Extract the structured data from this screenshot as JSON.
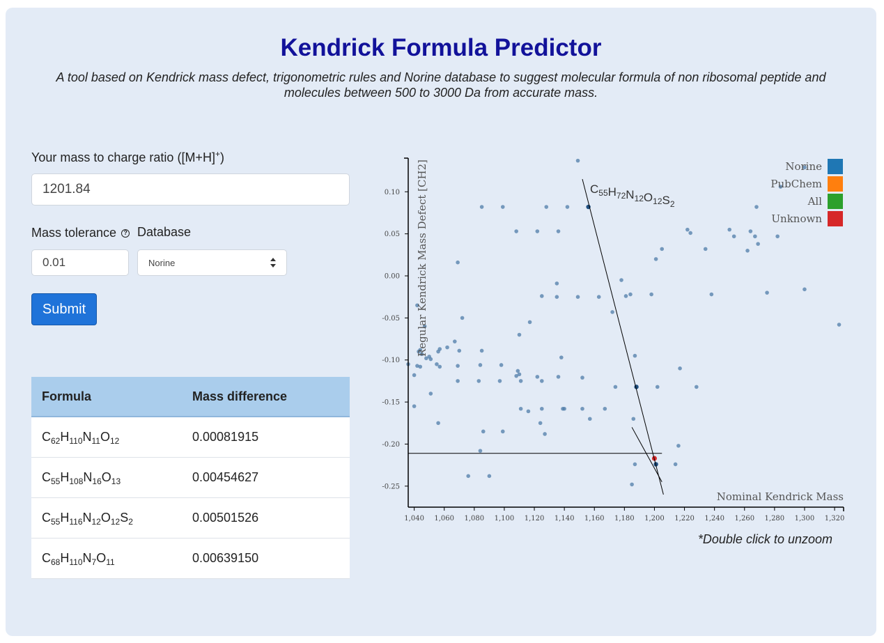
{
  "header": {
    "title": "Kendrick Formula Predictor",
    "subtitle": "A tool based on Kendrick mass defect, trigonometric rules and Norine database to suggest molecular formula of non ribosomal peptide and molecules between 500 to 3000 Da from accurate mass."
  },
  "form": {
    "mz_label": "Your mass to charge ratio ([M+H]",
    "mz_label_sup": "+",
    "mz_label_end": ")",
    "mz_value": "1201.84",
    "tolerance_label": "Mass tolerance",
    "tolerance_help": "?",
    "tolerance_value": "0.01",
    "database_label": "Database",
    "database_selected": "Norine",
    "submit_label": "Submit"
  },
  "results": {
    "headers": [
      "Formula",
      "Mass difference"
    ],
    "rows": [
      {
        "formula": [
          [
            "C",
            "62"
          ],
          [
            "H",
            "110"
          ],
          [
            "N",
            "11"
          ],
          [
            "O",
            "12"
          ]
        ],
        "diff": "0.00081915"
      },
      {
        "formula": [
          [
            "C",
            "55"
          ],
          [
            "H",
            "108"
          ],
          [
            "N",
            "16"
          ],
          [
            "O",
            "13"
          ]
        ],
        "diff": "0.00454627"
      },
      {
        "formula": [
          [
            "C",
            "55"
          ],
          [
            "H",
            "116"
          ],
          [
            "N",
            "12"
          ],
          [
            "O",
            "12"
          ],
          [
            "S",
            "2"
          ]
        ],
        "diff": "0.00501526"
      },
      {
        "formula": [
          [
            "C",
            "68"
          ],
          [
            "H",
            "110"
          ],
          [
            "N",
            "7"
          ],
          [
            "O",
            "11"
          ]
        ],
        "diff": "0.00639150"
      }
    ]
  },
  "chart_data": {
    "type": "scatter",
    "xlabel": "Nominal Kendrick Mass",
    "ylabel": "Regular Kendrick Mass Defect [CH2]",
    "xlim": [
      1036,
      1326
    ],
    "ylim": [
      -0.275,
      0.14
    ],
    "x_ticks": [
      1040,
      1060,
      1080,
      1100,
      1120,
      1140,
      1160,
      1180,
      1200,
      1220,
      1240,
      1260,
      1280,
      1300,
      1320
    ],
    "x_tick_labels": [
      "1,040",
      "1,060",
      "1,080",
      "1,100",
      "1,120",
      "1,140",
      "1,160",
      "1,180",
      "1,200",
      "1,220",
      "1,240",
      "1,260",
      "1,280",
      "1,300",
      "1,320"
    ],
    "y_ticks": [
      -0.25,
      -0.2,
      -0.15,
      -0.1,
      -0.05,
      0,
      0.05,
      0.1
    ],
    "y_tick_labels": [
      "-0.25",
      "-0.20",
      "-0.15",
      "-0.10",
      "-0.05",
      "0.00",
      "0.05",
      "0.10"
    ],
    "legend": {
      "placement": "top-right",
      "items": [
        {
          "name": "Norine",
          "color": "#1f77b4"
        },
        {
          "name": "PubChem",
          "color": "#ff7f0e"
        },
        {
          "name": "All",
          "color": "#2ca02c"
        },
        {
          "name": "Unknown",
          "color": "#d62728"
        }
      ]
    },
    "annotation": {
      "parts": [
        [
          "C",
          "55"
        ],
        [
          "H",
          "72"
        ],
        [
          "N",
          "12"
        ],
        [
          "O",
          "12"
        ],
        [
          "S",
          "2"
        ]
      ]
    },
    "unknown_point": {
      "x": 1200,
      "y": -0.217
    },
    "guide_h": {
      "y": -0.211,
      "x0": 1036,
      "x1": 1205
    },
    "guide_lines": [
      {
        "x0": 1152,
        "y0": 0.115,
        "x1": 1206,
        "y1": -0.26
      },
      {
        "x0": 1185,
        "y0": -0.18,
        "x1": 1205,
        "y1": -0.245
      }
    ],
    "highlighted": [
      [
        1156,
        0.082
      ],
      [
        1188,
        -0.132
      ],
      [
        1201,
        -0.224
      ]
    ],
    "points": [
      [
        1036,
        -0.105
      ],
      [
        1040,
        -0.118
      ],
      [
        1040,
        -0.155
      ],
      [
        1042,
        -0.107
      ],
      [
        1042,
        -0.035
      ],
      [
        1043,
        -0.09
      ],
      [
        1044,
        -0.088
      ],
      [
        1044,
        -0.108
      ],
      [
        1045,
        -0.093
      ],
      [
        1047,
        -0.06
      ],
      [
        1048,
        -0.098
      ],
      [
        1050,
        -0.096
      ],
      [
        1051,
        -0.099
      ],
      [
        1051,
        -0.14
      ],
      [
        1055,
        -0.105
      ],
      [
        1056,
        -0.09
      ],
      [
        1056,
        -0.175
      ],
      [
        1057,
        -0.087
      ],
      [
        1057,
        -0.108
      ],
      [
        1062,
        -0.085
      ],
      [
        1067,
        -0.078
      ],
      [
        1069,
        -0.107
      ],
      [
        1069,
        -0.125
      ],
      [
        1069,
        0.016
      ],
      [
        1070,
        -0.089
      ],
      [
        1072,
        -0.05
      ],
      [
        1076,
        -0.238
      ],
      [
        1083,
        -0.125
      ],
      [
        1084,
        -0.106
      ],
      [
        1084,
        -0.208
      ],
      [
        1085,
        -0.089
      ],
      [
        1085,
        0.082
      ],
      [
        1086,
        -0.185
      ],
      [
        1090,
        -0.238
      ],
      [
        1097,
        -0.125
      ],
      [
        1098,
        -0.106
      ],
      [
        1099,
        -0.185
      ],
      [
        1099,
        0.082
      ],
      [
        1108,
        -0.119
      ],
      [
        1108,
        0.053
      ],
      [
        1109,
        -0.113
      ],
      [
        1110,
        -0.117
      ],
      [
        1110,
        -0.07
      ],
      [
        1111,
        -0.125
      ],
      [
        1111,
        -0.158
      ],
      [
        1116,
        -0.161
      ],
      [
        1117,
        -0.055
      ],
      [
        1122,
        -0.12
      ],
      [
        1122,
        0.053
      ],
      [
        1124,
        -0.175
      ],
      [
        1125,
        -0.125
      ],
      [
        1125,
        -0.024
      ],
      [
        1125,
        -0.158
      ],
      [
        1127,
        -0.188
      ],
      [
        1128,
        0.082
      ],
      [
        1135,
        -0.009
      ],
      [
        1135,
        -0.025
      ],
      [
        1136,
        -0.12
      ],
      [
        1136,
        0.053
      ],
      [
        1138,
        -0.097
      ],
      [
        1139,
        -0.158
      ],
      [
        1140,
        -0.158
      ],
      [
        1142,
        0.082
      ],
      [
        1149,
        -0.025
      ],
      [
        1149,
        0.137
      ],
      [
        1152,
        -0.158
      ],
      [
        1152,
        -0.121
      ],
      [
        1157,
        -0.17
      ],
      [
        1163,
        -0.025
      ],
      [
        1167,
        -0.158
      ],
      [
        1172,
        -0.043
      ],
      [
        1174,
        -0.132
      ],
      [
        1178,
        -0.005
      ],
      [
        1181,
        -0.024
      ],
      [
        1184,
        -0.022
      ],
      [
        1185,
        -0.248
      ],
      [
        1186,
        -0.17
      ],
      [
        1187,
        -0.095
      ],
      [
        1187,
        -0.224
      ],
      [
        1198,
        -0.022
      ],
      [
        1201,
        0.02
      ],
      [
        1202,
        -0.132
      ],
      [
        1205,
        0.032
      ],
      [
        1214,
        -0.224
      ],
      [
        1216,
        -0.202
      ],
      [
        1217,
        -0.11
      ],
      [
        1222,
        0.055
      ],
      [
        1224,
        0.051
      ],
      [
        1228,
        -0.132
      ],
      [
        1234,
        0.032
      ],
      [
        1238,
        -0.022
      ],
      [
        1250,
        0.055
      ],
      [
        1253,
        0.047
      ],
      [
        1262,
        0.03
      ],
      [
        1264,
        0.053
      ],
      [
        1267,
        0.047
      ],
      [
        1268,
        0.082
      ],
      [
        1269,
        0.038
      ],
      [
        1275,
        -0.02
      ],
      [
        1282,
        0.047
      ],
      [
        1284,
        0.106
      ],
      [
        1300,
        -0.016
      ],
      [
        1300,
        0.129
      ],
      [
        1323,
        -0.058
      ]
    ]
  }
}
